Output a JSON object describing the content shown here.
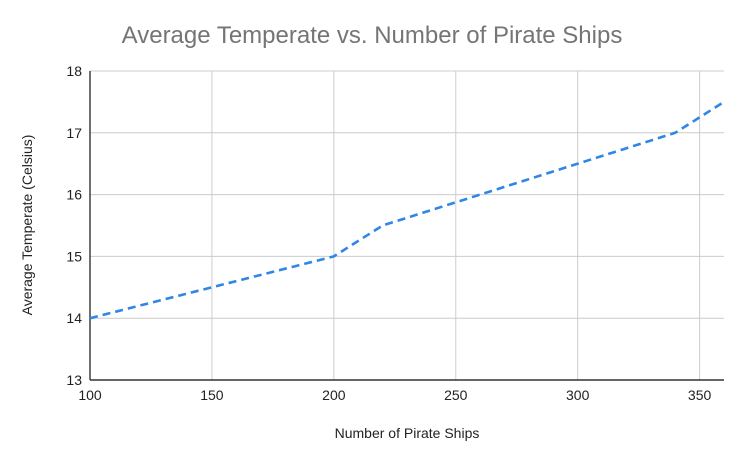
{
  "chart_data": {
    "type": "line",
    "title": "Average Temperate vs. Number of Pirate Ships",
    "xlabel": "Number of Pirate Ships",
    "ylabel": "Average Temperate (Celsius)",
    "xlim": [
      100,
      360
    ],
    "ylim": [
      13,
      18
    ],
    "x_ticks": [
      100,
      150,
      200,
      250,
      300,
      350
    ],
    "y_ticks": [
      13,
      14,
      15,
      16,
      17,
      18
    ],
    "grid": true,
    "legend": "none",
    "series": [
      {
        "color": "#2f86e6",
        "line_style": "dashed",
        "x": [
          100,
          200,
          220,
          340,
          360
        ],
        "y": [
          14,
          15,
          15.5,
          17,
          17.5
        ]
      }
    ]
  }
}
